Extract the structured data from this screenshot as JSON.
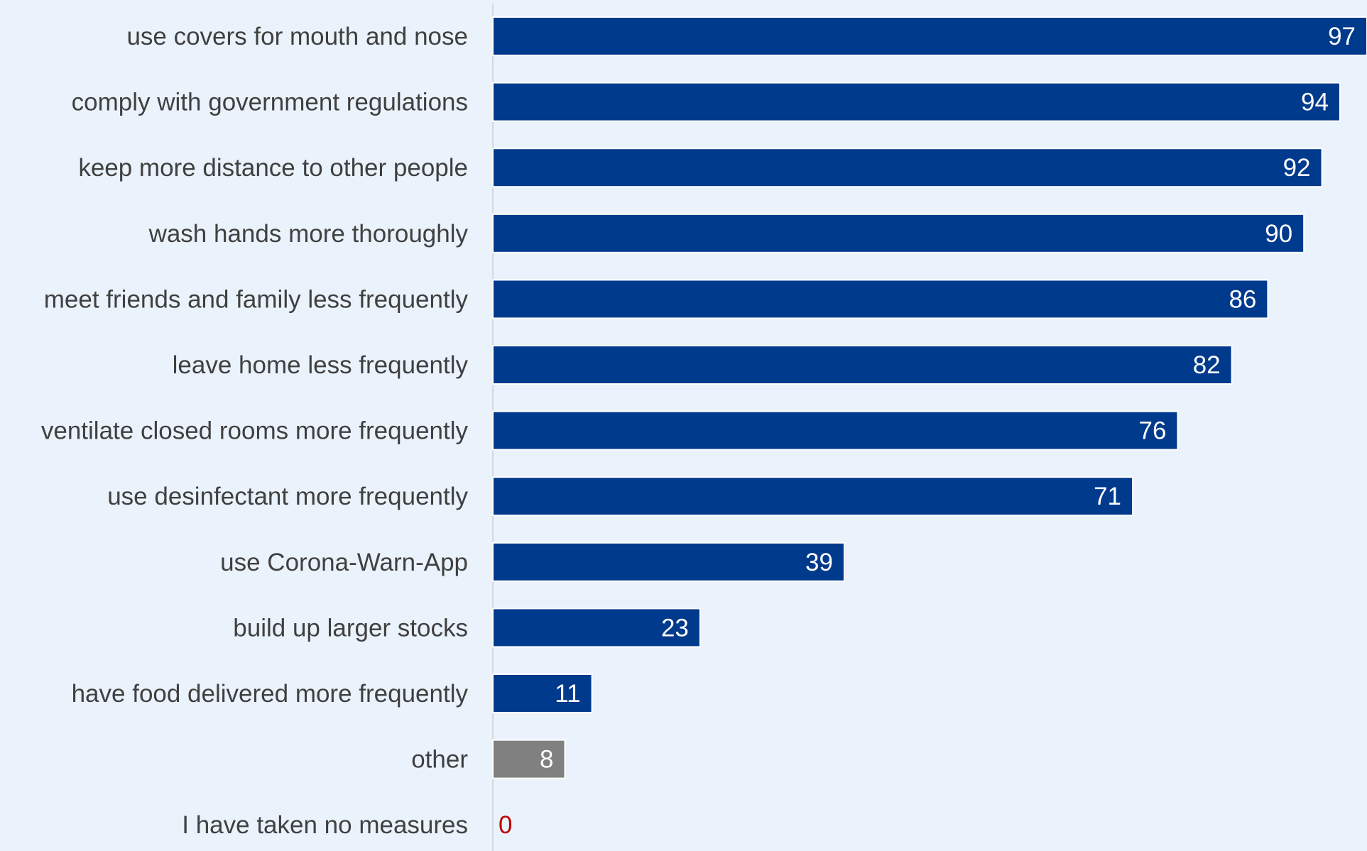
{
  "chart_data": {
    "type": "bar",
    "orientation": "horizontal",
    "title": "",
    "xlabel": "",
    "ylabel": "",
    "xlim": [
      0,
      97
    ],
    "grid": false,
    "legend": "none",
    "categories": [
      "use covers for mouth and nose",
      "comply with government regulations",
      "keep more distance to other people",
      "wash hands more thoroughly",
      "meet friends and family less frequently",
      "leave home less frequently",
      "ventilate closed rooms more frequently",
      "use desinfectant more frequently",
      "use Corona-Warn-App",
      "build up larger stocks",
      "have food delivered more frequently",
      "other",
      "I have taken no measures"
    ],
    "values": [
      97,
      94,
      92,
      90,
      86,
      82,
      76,
      71,
      39,
      23,
      11,
      8,
      0
    ],
    "data_labels": [
      "97",
      "94",
      "92",
      "90",
      "86",
      "82",
      "76",
      "71",
      "39",
      "23",
      "11",
      "8",
      "0"
    ],
    "colors": {
      "bar": "#003a8c",
      "other_bar": "#808080",
      "zero_label": "#c00000",
      "value_label": "#ffffff",
      "category_label": "#404040",
      "axis": "#d0d8e0",
      "background": "#eaf3fc"
    }
  }
}
